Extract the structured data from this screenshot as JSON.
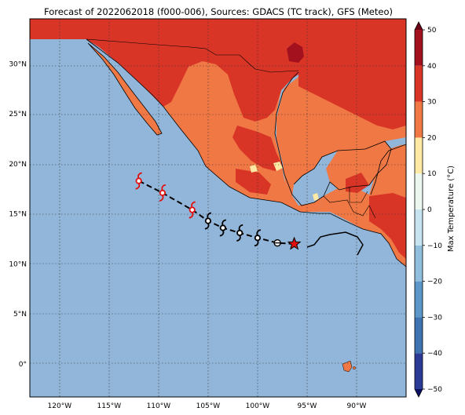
{
  "title": "Forecast of 2022062018 (f000-006), Sources: GDACS (TC track), GFS (Meteo)",
  "map": {
    "lon_labels": [
      "120°W",
      "115°W",
      "110°W",
      "105°W",
      "100°W",
      "95°W",
      "90°W"
    ],
    "lat_labels": [
      "30°N",
      "25°N",
      "20°N",
      "15°N",
      "10°N",
      "5°N",
      "0°"
    ],
    "lon_range": [
      -123,
      -85
    ],
    "lat_range": [
      -3.3,
      34.5
    ],
    "gridlines": true,
    "ocean_color": "#91b6da"
  },
  "colorbar": {
    "label": "Max Temperature (°C)",
    "ticks": [
      "50",
      "40",
      "30",
      "20",
      "10",
      "0",
      "−10",
      "−20",
      "−30",
      "−40",
      "−50"
    ],
    "levels": [
      {
        "range": [
          -55,
          -50
        ],
        "color": "#0a1060"
      },
      {
        "range": [
          -50,
          -40
        ],
        "color": "#2a3a95"
      },
      {
        "range": [
          -40,
          -30
        ],
        "color": "#3e72b0"
      },
      {
        "range": [
          -30,
          -20
        ],
        "color": "#5b98c9"
      },
      {
        "range": [
          -20,
          -10
        ],
        "color": "#91bedd"
      },
      {
        "range": [
          -10,
          0
        ],
        "color": "#c6e3ef"
      },
      {
        "range": [
          0,
          10
        ],
        "color": "#ecf7f0"
      },
      {
        "range": [
          10,
          20
        ],
        "color": "#fde9a4"
      },
      {
        "range": [
          20,
          30
        ],
        "color": "#f07845"
      },
      {
        "range": [
          30,
          40
        ],
        "color": "#d83527"
      },
      {
        "range": [
          40,
          50
        ],
        "color": "#a3111f"
      },
      {
        "range": [
          50,
          55
        ],
        "color": "#6a0016"
      }
    ]
  },
  "track": {
    "current_position": {
      "lon": -96.3,
      "lat": 12.0,
      "marker": "star-icon"
    },
    "points": [
      {
        "lon": -98.0,
        "lat": 12.1,
        "symbol": "tropical-depression-icon"
      },
      {
        "lon": -100.0,
        "lat": 12.6,
        "symbol": "tropical-storm-icon"
      },
      {
        "lon": -101.8,
        "lat": 13.1,
        "symbol": "tropical-storm-icon"
      },
      {
        "lon": -103.5,
        "lat": 13.6,
        "symbol": "tropical-storm-icon"
      },
      {
        "lon": -105.0,
        "lat": 14.3,
        "symbol": "tropical-storm-icon"
      },
      {
        "lon": -106.6,
        "lat": 15.4,
        "symbol": "hurricane-icon"
      },
      {
        "lon": -109.6,
        "lat": 17.1,
        "symbol": "hurricane-icon"
      },
      {
        "lon": -112.0,
        "lat": 18.3,
        "symbol": "hurricane-icon"
      }
    ]
  }
}
